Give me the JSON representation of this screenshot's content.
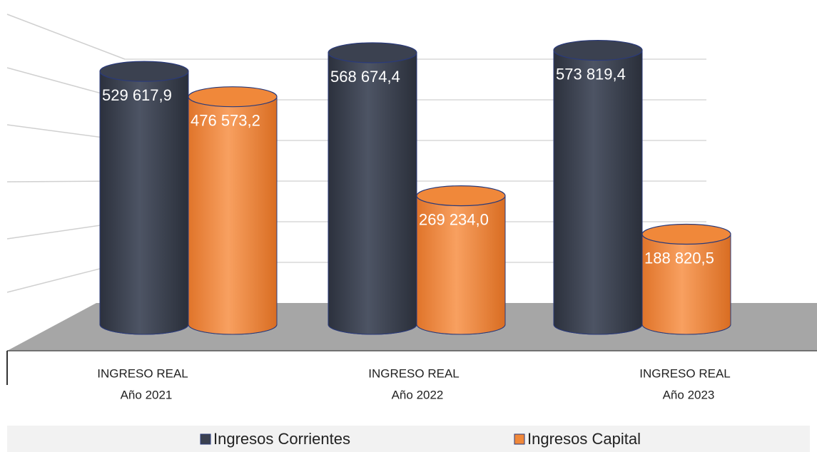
{
  "chart_data": {
    "type": "bar3d",
    "categories": [
      [
        "INGRESO REAL",
        "Año 2021"
      ],
      [
        "INGRESO REAL",
        "Año 2022"
      ],
      [
        "INGRESO REAL",
        "Año 2023"
      ]
    ],
    "series": [
      {
        "name": "Ingresos Corrientes",
        "color": "#3b4150",
        "values": [
          529617.9,
          568674.4,
          573819.4
        ],
        "value_labels": [
          "529 617,9",
          "568 674,4",
          "573 819,4"
        ]
      },
      {
        "name": "Ingresos Capital",
        "color": "#f0883a",
        "values": [
          476573.2,
          269234.0,
          188820.5
        ],
        "value_labels": [
          "476 573,2",
          "269 234,0",
          "188 820,5"
        ]
      }
    ],
    "grid": true
  }
}
